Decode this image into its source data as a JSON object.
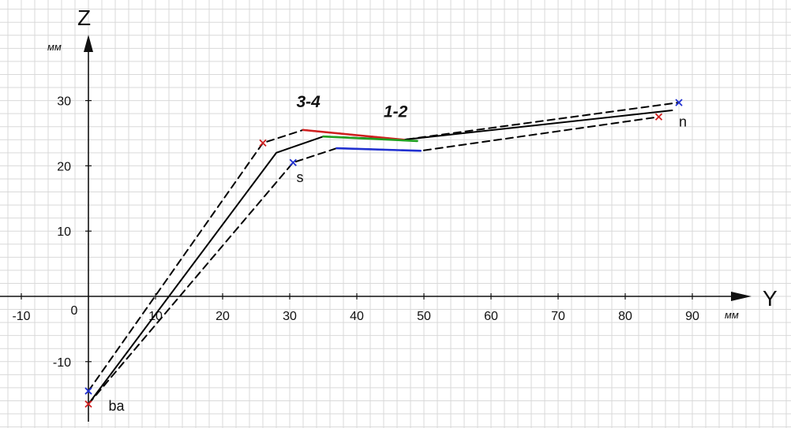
{
  "chart_data": {
    "type": "line",
    "xaxis_label": "Y",
    "yaxis_label": "Z",
    "x_unit": "мм",
    "y_unit": "мм",
    "xlim": [
      -13,
      100
    ],
    "ylim": [
      -20,
      44
    ],
    "x_ticks": [
      -10,
      0,
      10,
      20,
      30,
      40,
      50,
      60,
      70,
      80,
      90
    ],
    "x_tick_labels": [
      "-10",
      "0",
      "10",
      "20",
      "30",
      "40",
      "50",
      "60",
      "70",
      "80",
      "90"
    ],
    "y_ticks": [
      -10,
      10,
      20,
      30
    ],
    "y_tick_labels": [
      "-10",
      "10",
      "20",
      "30"
    ],
    "grid": true,
    "series": [
      {
        "style": "solid",
        "color": "#000000",
        "points": [
          [
            0,
            -16.5
          ],
          [
            28,
            22
          ],
          [
            35,
            24.5
          ],
          [
            47,
            24
          ],
          [
            87,
            28.5
          ]
        ]
      },
      {
        "style": "dashed",
        "color": "#000000",
        "points": [
          [
            0,
            -14.5
          ],
          [
            26,
            23.5
          ],
          [
            32,
            25.5
          ],
          [
            47,
            24
          ],
          [
            88,
            29.7
          ]
        ]
      },
      {
        "style": "dashed",
        "color": "#000000",
        "points": [
          [
            0,
            -16.5
          ],
          [
            30.5,
            20.5
          ],
          [
            37,
            22.7
          ],
          [
            49.5,
            22.3
          ],
          [
            85,
            27.5
          ]
        ]
      },
      {
        "style": "solid",
        "color": "#d02020",
        "points": [
          [
            32,
            25.5
          ],
          [
            47,
            24
          ]
        ]
      },
      {
        "style": "solid",
        "color": "#20a020",
        "points": [
          [
            35,
            24.5
          ],
          [
            49,
            23.8
          ]
        ]
      },
      {
        "style": "solid",
        "color": "#2030d0",
        "points": [
          [
            37,
            22.7
          ],
          [
            49.5,
            22.3
          ]
        ]
      }
    ],
    "markers": [
      {
        "color": "#d02020",
        "point": [
          0,
          -16.5
        ]
      },
      {
        "color": "#2030d0",
        "point": [
          0,
          -14.5
        ]
      },
      {
        "color": "#d02020",
        "point": [
          26,
          23.5
        ]
      },
      {
        "color": "#2030d0",
        "point": [
          30.5,
          20.5
        ]
      },
      {
        "color": "#d02020",
        "point": [
          85,
          27.5
        ]
      },
      {
        "color": "#2030d0",
        "point": [
          88,
          29.7
        ]
      }
    ],
    "annotations": [
      {
        "text": "3-4",
        "at": [
          31,
          29
        ],
        "style": "bold"
      },
      {
        "text": "1-2",
        "at": [
          44,
          27.5
        ],
        "style": "bold"
      },
      {
        "text": "n",
        "at": [
          88,
          26
        ],
        "style": "plain-large"
      },
      {
        "text": "s",
        "at": [
          31,
          17.5
        ],
        "style": "plain"
      },
      {
        "text": "ba",
        "at": [
          3,
          -17.5
        ],
        "style": "plain"
      }
    ]
  }
}
